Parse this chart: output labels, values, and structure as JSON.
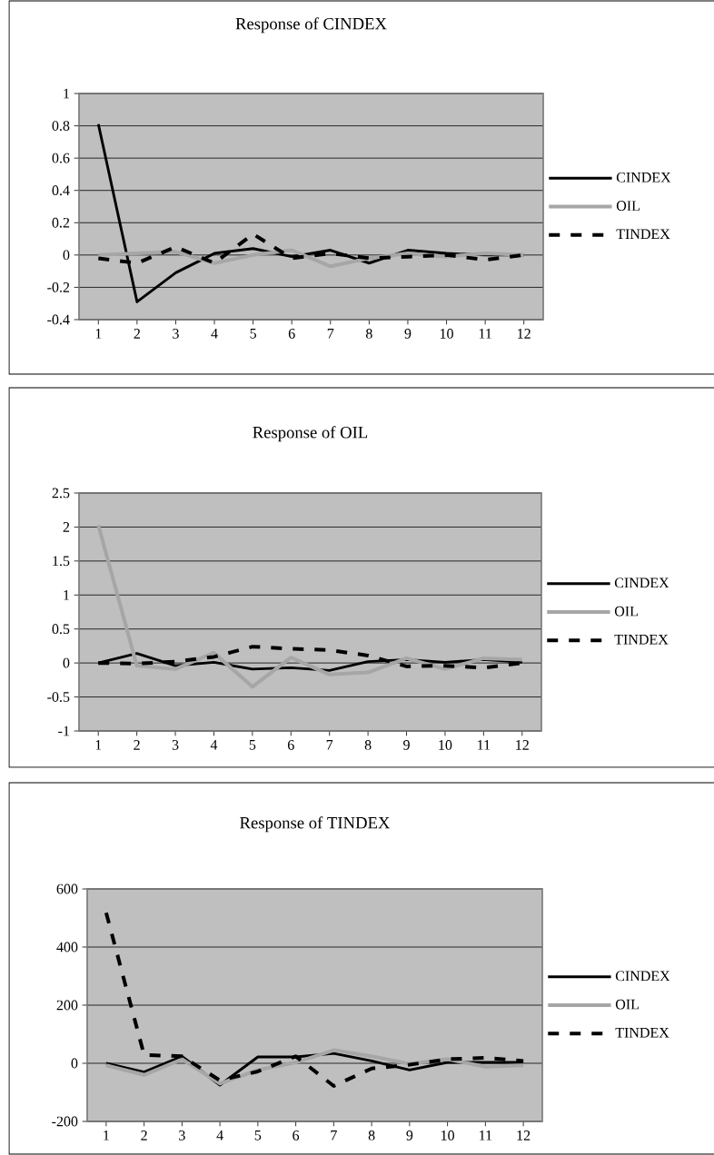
{
  "chart_data": [
    {
      "type": "line",
      "title": "Response of CINDEX",
      "categories": [
        "1",
        "2",
        "3",
        "4",
        "5",
        "6",
        "7",
        "8",
        "9",
        "10",
        "11",
        "12"
      ],
      "series": [
        {
          "name": "CINDEX",
          "color": "#000000",
          "line_style": "solid",
          "values": [
            0.81,
            -0.29,
            -0.11,
            0.01,
            0.04,
            -0.01,
            0.03,
            -0.05,
            0.03,
            0.01,
            0,
            0
          ]
        },
        {
          "name": "OIL",
          "color": "#a6a6a6",
          "line_style": "solid",
          "values": [
            0,
            0.01,
            0.02,
            -0.05,
            0,
            0.03,
            -0.07,
            -0.02,
            0.01,
            -0.01,
            0.01,
            0
          ]
        },
        {
          "name": "TINDEX",
          "color": "#000000",
          "line_style": "dashed",
          "values": [
            -0.02,
            -0.05,
            0.05,
            -0.05,
            0.13,
            -0.02,
            0.01,
            -0.02,
            -0.01,
            0,
            -0.03,
            0
          ]
        }
      ],
      "ylim": [
        -0.4,
        1
      ],
      "yticks": [
        -0.4,
        -0.2,
        0,
        0.2,
        0.4,
        0.6,
        0.8,
        1
      ],
      "grid": "y",
      "legend": "right"
    },
    {
      "type": "line",
      "title": "Response of OIL",
      "categories": [
        "1",
        "2",
        "3",
        "4",
        "5",
        "6",
        "7",
        "8",
        "9",
        "10",
        "11",
        "12"
      ],
      "series": [
        {
          "name": "CINDEX",
          "color": "#000000",
          "line_style": "solid",
          "values": [
            0,
            0.14,
            -0.04,
            0.01,
            -0.09,
            -0.07,
            -0.11,
            0.02,
            0.05,
            0.01,
            0.05,
            0.01
          ]
        },
        {
          "name": "OIL",
          "color": "#a6a6a6",
          "line_style": "solid",
          "values": [
            2.03,
            -0.04,
            -0.09,
            0.15,
            -0.35,
            0.08,
            -0.17,
            -0.14,
            0.07,
            -0.09,
            0.07,
            0.05
          ]
        },
        {
          "name": "TINDEX",
          "color": "#000000",
          "line_style": "dashed",
          "values": [
            0,
            -0.01,
            0.02,
            0.09,
            0.24,
            0.21,
            0.19,
            0.11,
            -0.05,
            -0.04,
            -0.07,
            0
          ]
        }
      ],
      "ylim": [
        -1,
        2.5
      ],
      "yticks": [
        -1,
        -0.5,
        0,
        0.5,
        1,
        1.5,
        2,
        2.5
      ],
      "grid": "y",
      "legend": "right"
    },
    {
      "type": "line",
      "title": "Response of TINDEX",
      "categories": [
        "1",
        "2",
        "3",
        "4",
        "5",
        "6",
        "7",
        "8",
        "9",
        "10",
        "11",
        "12"
      ],
      "series": [
        {
          "name": "CINDEX",
          "color": "#000000",
          "line_style": "solid",
          "values": [
            0,
            -30,
            24,
            -75,
            22,
            22,
            34,
            8,
            -23,
            3,
            3,
            3
          ]
        },
        {
          "name": "OIL",
          "color": "#a6a6a6",
          "line_style": "solid",
          "values": [
            -7,
            -40,
            14,
            -70,
            -23,
            3,
            45,
            24,
            -2,
            14,
            -12,
            -7
          ]
        },
        {
          "name": "TINDEX",
          "color": "#000000",
          "line_style": "dashed",
          "values": [
            518,
            29,
            24,
            -59,
            -28,
            24,
            -78,
            -18,
            -5,
            14,
            19,
            8
          ]
        }
      ],
      "ylim": [
        -200,
        600
      ],
      "yticks": [
        -200,
        0,
        200,
        400,
        600
      ],
      "grid": "y",
      "legend": "right"
    }
  ]
}
